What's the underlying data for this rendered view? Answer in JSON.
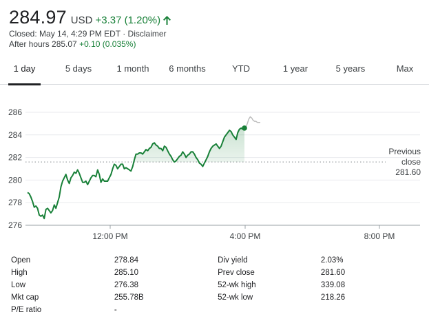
{
  "quote": {
    "price": "284.97",
    "currency": "USD",
    "change": "+3.37 (1.20%)",
    "closed_text": "Closed: May 14, 4:29 PM EDT",
    "separator": " · ",
    "disclaimer": "Disclaimer",
    "after_hours_label": "After hours 285.07",
    "after_hours_change": "+0.10 (0.035%)",
    "up_color": "#188038",
    "arrow_icon": "arrow-up-icon"
  },
  "tabs": [
    {
      "label": "1 day",
      "active": true
    },
    {
      "label": "5 days",
      "active": false
    },
    {
      "label": "1 month",
      "active": false
    },
    {
      "label": "6 months",
      "active": false
    },
    {
      "label": "YTD",
      "active": false
    },
    {
      "label": "1 year",
      "active": false
    },
    {
      "label": "5 years",
      "active": false
    },
    {
      "label": "Max",
      "active": false
    }
  ],
  "chart_data": {
    "type": "line",
    "y_ticks": [
      "286",
      "284",
      "282",
      "280",
      "278",
      "276"
    ],
    "x_ticks": [
      "12:00 PM",
      "4:00 PM",
      "8:00 PM"
    ],
    "ylim": [
      276,
      286
    ],
    "prev_close_label_1": "Previous",
    "prev_close_label_2": "close",
    "prev_close_value": "281.60",
    "prev_close": 281.6,
    "line_color": "#188038",
    "after_hours_color": "#bdbdbd",
    "series": [
      {
        "values": [
          278.9,
          278.8,
          278.5,
          278.1,
          277.6,
          277.7,
          277.5,
          276.9,
          276.8,
          276.9,
          276.6,
          277.4,
          277.5,
          277.3,
          277.1,
          277.3,
          277.8,
          277.5,
          278.0,
          278.5,
          279.4,
          279.9,
          280.2,
          280.5,
          280.0,
          279.7,
          280.2,
          280.4,
          280.7,
          280.6,
          280.9,
          280.6,
          280.2,
          279.8,
          279.8,
          279.9,
          279.6,
          279.9,
          280.2,
          280.4,
          280.4,
          280.3,
          280.9,
          280.5,
          279.8,
          280.1,
          279.9,
          279.9,
          279.9,
          280.2,
          280.5,
          281.0,
          281.4,
          281.3,
          281.0,
          281.2,
          281.4,
          281.4,
          281.0,
          281.1,
          281.0,
          280.9,
          280.8,
          281.2,
          281.8,
          282.3,
          282.3,
          282.4,
          282.4,
          282.3,
          282.5,
          282.7,
          282.6,
          282.8,
          282.9,
          283.2,
          283.3,
          283.1,
          283.0,
          282.8,
          282.8,
          282.6,
          283.0,
          282.9,
          282.6,
          282.3,
          282.1,
          281.8,
          281.6,
          281.7,
          281.9,
          282.1,
          282.2,
          282.5,
          282.3,
          282.0,
          282.2,
          282.3,
          282.5,
          282.5,
          282.3,
          282.0,
          281.8,
          281.5,
          281.4,
          281.2,
          281.5,
          281.8,
          282.1,
          282.5,
          282.8,
          283.0,
          283.1,
          283.2,
          283.0,
          282.8,
          283.0,
          283.4,
          283.8,
          284.0,
          284.2,
          284.4,
          284.3,
          284.0,
          283.8,
          283.6,
          284.2,
          284.5,
          284.6,
          284.5,
          284.6
        ]
      },
      {
        "values": [
          284.6,
          284.7,
          285.0,
          285.4,
          285.6,
          285.5,
          285.3,
          285.2,
          285.2,
          285.1,
          285.1,
          285.1
        ]
      }
    ]
  },
  "stats": {
    "rows": [
      {
        "l1": "Open",
        "v1": "278.84",
        "l2": "Div yield",
        "v2": "2.03%"
      },
      {
        "l1": "High",
        "v1": "285.10",
        "l2": "Prev close",
        "v2": "281.60"
      },
      {
        "l1": "Low",
        "v1": "276.38",
        "l2": "52-wk high",
        "v2": "339.08"
      },
      {
        "l1": "Mkt cap",
        "v1": "255.78B",
        "l2": "52-wk low",
        "v2": "218.26"
      },
      {
        "l1": "P/E ratio",
        "v1": "-",
        "l2": "",
        "v2": ""
      }
    ]
  }
}
